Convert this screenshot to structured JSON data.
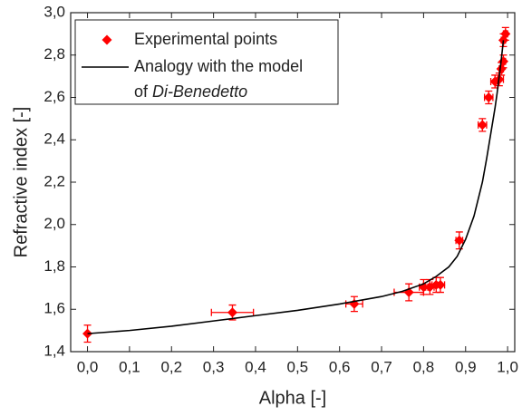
{
  "chart_data": {
    "type": "scatter",
    "xlabel": "Alpha [-]",
    "ylabel": "Refractive index [-]",
    "xlim": [
      -0.04,
      1.017
    ],
    "ylim": [
      1.4,
      3.0
    ],
    "xticks": [
      {
        "value": 0,
        "label": "0,0"
      },
      {
        "value": 0.1,
        "label": "0,1"
      },
      {
        "value": 0.2,
        "label": "0,2"
      },
      {
        "value": 0.3,
        "label": "0,3"
      },
      {
        "value": 0.4,
        "label": "0,4"
      },
      {
        "value": 0.5,
        "label": "0,5"
      },
      {
        "value": 0.6,
        "label": "0,6"
      },
      {
        "value": 0.7,
        "label": "0,7"
      },
      {
        "value": 0.8,
        "label": "0,8"
      },
      {
        "value": 0.9,
        "label": "0,9"
      },
      {
        "value": 1.0,
        "label": "1,0"
      }
    ],
    "yticks": [
      {
        "value": 1.4,
        "label": "1,4"
      },
      {
        "value": 1.6,
        "label": "1,6"
      },
      {
        "value": 1.8,
        "label": "1,8"
      },
      {
        "value": 2.0,
        "label": "2,0"
      },
      {
        "value": 2.2,
        "label": "2,2"
      },
      {
        "value": 2.4,
        "label": "2,4"
      },
      {
        "value": 2.6,
        "label": "2,6"
      },
      {
        "value": 2.8,
        "label": "2,8"
      },
      {
        "value": 3.0,
        "label": "3,0"
      }
    ],
    "legend": "upper left",
    "series": [
      {
        "type": "scatter",
        "name": "Experimental points",
        "color": "#ff0000",
        "x": [
          0.0,
          0.345,
          0.635,
          0.765,
          0.8,
          0.815,
          0.83,
          0.84,
          0.885,
          0.94,
          0.955,
          0.97,
          0.98,
          0.985,
          0.99,
          0.99,
          0.995
        ],
        "values": [
          1.485,
          1.585,
          1.625,
          1.68,
          1.705,
          1.705,
          1.715,
          1.715,
          1.925,
          2.47,
          2.6,
          2.675,
          2.685,
          2.735,
          2.77,
          2.87,
          2.9
        ],
        "xerr": [
          0,
          0.05,
          0.02,
          0.035,
          0.01,
          0.01,
          0.01,
          0.01,
          0.008,
          0.01,
          0.01,
          0.01,
          0.01,
          0.005,
          0.005,
          0.005,
          0.005
        ],
        "yerr": [
          0.04,
          0.035,
          0.035,
          0.04,
          0.035,
          0.035,
          0.035,
          0.035,
          0.04,
          0.03,
          0.03,
          0.03,
          0.03,
          0.03,
          0.03,
          0.03,
          0.03
        ]
      },
      {
        "type": "line",
        "name": "Analogy with the model",
        "name_cont": "of",
        "name_italic": "Di-Benedetto",
        "color": "#000000",
        "x": [
          0.0,
          0.1,
          0.2,
          0.3,
          0.4,
          0.5,
          0.6,
          0.7,
          0.75,
          0.8,
          0.83,
          0.86,
          0.88,
          0.9,
          0.92,
          0.94,
          0.95,
          0.96,
          0.97,
          0.975,
          0.98,
          0.985,
          0.99
        ],
        "values": [
          1.485,
          1.5,
          1.52,
          1.545,
          1.57,
          1.595,
          1.625,
          1.66,
          1.685,
          1.72,
          1.755,
          1.8,
          1.85,
          1.93,
          2.04,
          2.2,
          2.31,
          2.43,
          2.55,
          2.62,
          2.7,
          2.78,
          2.87
        ]
      }
    ]
  }
}
